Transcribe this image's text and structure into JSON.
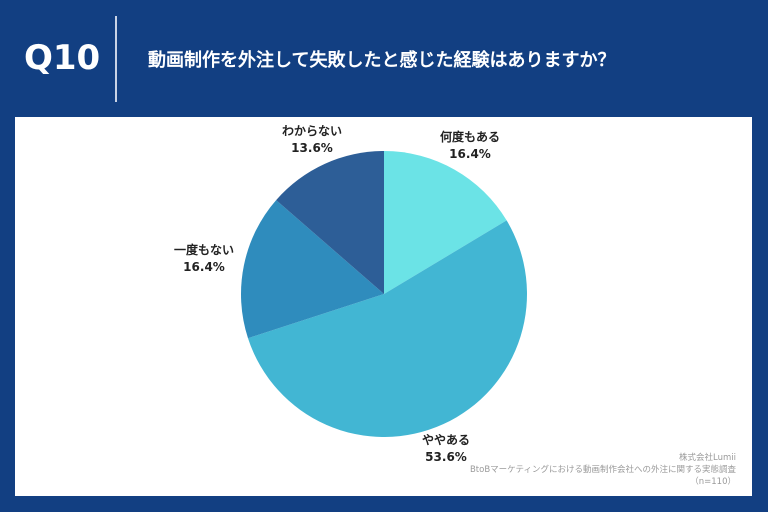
{
  "header": {
    "question_number": "Q10",
    "title": "動画制作を外注して失敗したと感じた経験はありますか？"
  },
  "colors": {
    "background": "#123f82",
    "panel": "#ffffff"
  },
  "chart_data": {
    "type": "pie",
    "title": "動画制作を外注して失敗したと感じた経験はありますか？",
    "start_angle_deg": 0,
    "direction": "clockwise",
    "slices": [
      {
        "label": "何度もある",
        "value": 16.4,
        "display": "16.4%",
        "color": "#6be3e6"
      },
      {
        "label": "ややある",
        "value": 53.6,
        "display": "53.6%",
        "color": "#42b6d3"
      },
      {
        "label": "一度もない",
        "value": 16.4,
        "display": "16.4%",
        "color": "#2f8cbd"
      },
      {
        "label": "わからない",
        "value": 13.6,
        "display": "13.6%",
        "color": "#2d5e97"
      }
    ],
    "legend": "none (labels placed outside slices)"
  },
  "labels": {
    "nandomo": {
      "name": "何度もある",
      "pct": "16.4%"
    },
    "yaya": {
      "name": "ややある",
      "pct": "53.6%"
    },
    "ichido": {
      "name": "一度もない",
      "pct": "16.4%"
    },
    "wakaranai": {
      "name": "わからない",
      "pct": "13.6%"
    }
  },
  "source": {
    "company": "株式会社Lumii",
    "survey": "BtoBマーケティングにおける動画制作会社への外注に関する実態調査",
    "sample": "（n=110）"
  }
}
